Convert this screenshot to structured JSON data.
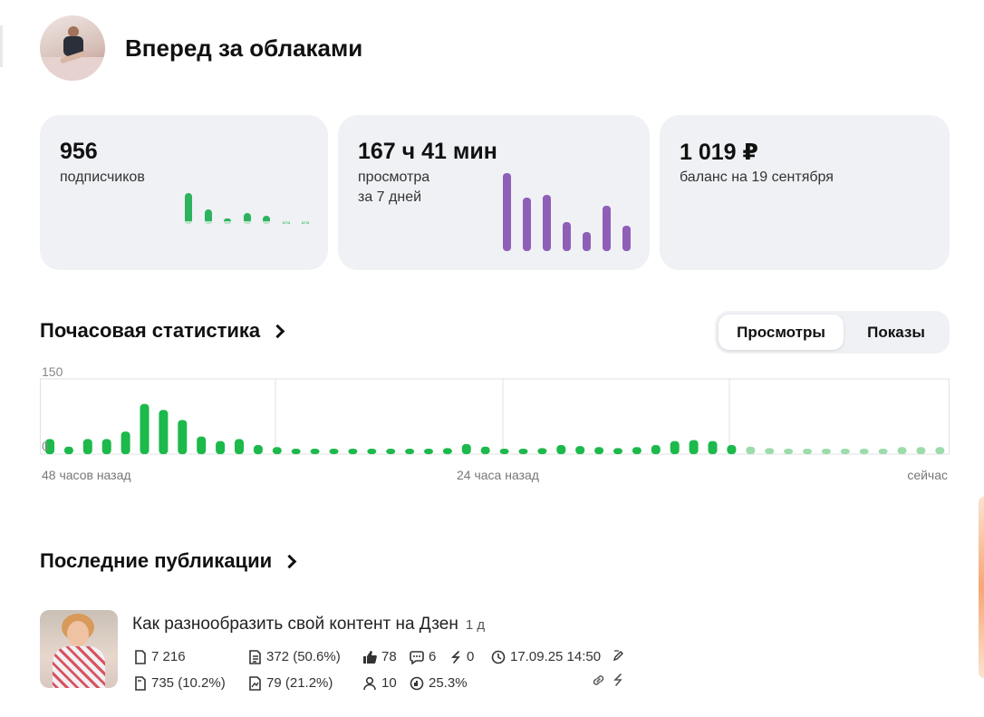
{
  "channel": {
    "title": "Вперед за облаками"
  },
  "cards": {
    "subscribers": {
      "value": "956",
      "label": "подписчиков",
      "trend": [
        0.95,
        0.45,
        0.18,
        0.32,
        0.24,
        0.07,
        0.07
      ]
    },
    "views": {
      "value": "167 ч 41 мин",
      "label1": "просмотра",
      "label2": "за 7 дней",
      "trend": [
        85,
        58,
        61,
        32,
        21,
        49,
        28
      ]
    },
    "balance": {
      "value": "1 019 ₽",
      "label": "баланс на 19 сентября"
    }
  },
  "hourly": {
    "title": "Почасовая статистика",
    "tabs": {
      "active": "Просмотры",
      "other": "Показы"
    }
  },
  "chart_data": {
    "type": "bar",
    "y_ticks": [
      "150",
      "0"
    ],
    "ylim": [
      0,
      150
    ],
    "grid": true,
    "x_labels": {
      "left": "48 часов назад",
      "middle": "24 часа назад",
      "right": "сейчас"
    },
    "series": [
      {
        "values": [
          30,
          15,
          30,
          30,
          45,
          100,
          88,
          68,
          35,
          26,
          30,
          18,
          14,
          10,
          6,
          5,
          5,
          5,
          5,
          5,
          5,
          12,
          20,
          15,
          10,
          10,
          12,
          18,
          16,
          14,
          12,
          14,
          18,
          26,
          28,
          26,
          18
        ]
      },
      {
        "values": [
          15,
          12,
          5,
          6,
          10,
          8,
          5,
          5,
          14,
          14,
          14,
          5
        ]
      }
    ],
    "colors": [
      "#1cb94b",
      "#9cdcab"
    ]
  },
  "publications": {
    "title": "Последние публикации",
    "items": [
      {
        "title": "Как разнообразить свой контент на Дзен",
        "age": "1 д",
        "stats": {
          "views": "7 216",
          "reads": "372 (50.6%)",
          "likes": "78",
          "comments": "6",
          "reposts": "0",
          "date": "17.09.25 14:50",
          "ctr": "735 (10.2%)",
          "full_reads": "79 (21.2%)",
          "subscribers": "10",
          "percent": "25.3%"
        }
      }
    ]
  }
}
